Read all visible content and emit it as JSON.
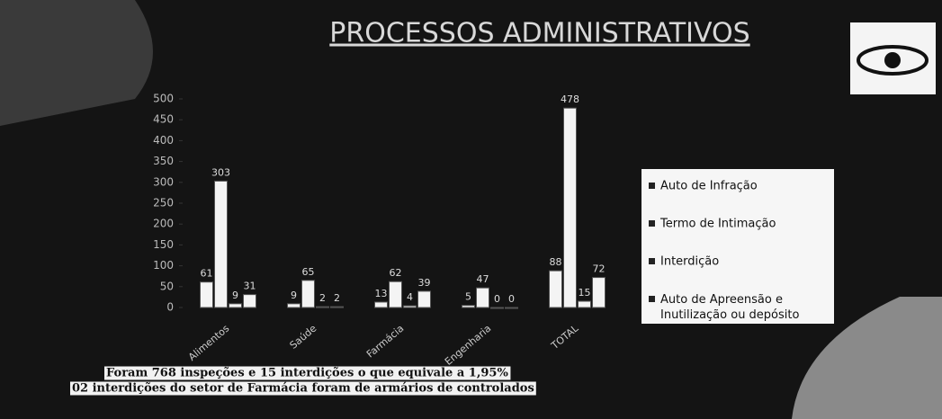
{
  "chart_data": {
    "type": "bar",
    "title": "PROCESSOS ADMINISTRATIVOS",
    "categories": [
      "Alimentos",
      "Saúde",
      "Farmácia",
      "Engenharia",
      "TOTAL"
    ],
    "series": [
      {
        "name": "Auto de Infração",
        "color": "#f4f4f4",
        "values": [
          61,
          9,
          13,
          5,
          88
        ]
      },
      {
        "name": "Termo de Intimação",
        "color": "#f4f4f4",
        "values": [
          303,
          65,
          62,
          47,
          478
        ]
      },
      {
        "name": "Interdição",
        "color": "#f4f4f4",
        "values": [
          9,
          2,
          4,
          0,
          15
        ]
      },
      {
        "name": "Auto de Apreensão e Inutilização ou depósito",
        "color": "#f4f4f4",
        "values": [
          31,
          2,
          39,
          0,
          72
        ]
      }
    ],
    "ylim": [
      0,
      500
    ],
    "yticks": [
      0,
      50,
      100,
      150,
      200,
      250,
      300,
      350,
      400,
      450,
      500
    ],
    "legend": "right",
    "annotations": [
      "Foram 768 inspeções e 15 interdições o que equivale a 1,95%",
      "02 interdições do setor de Farmácia foram de armários de controlados"
    ]
  }
}
